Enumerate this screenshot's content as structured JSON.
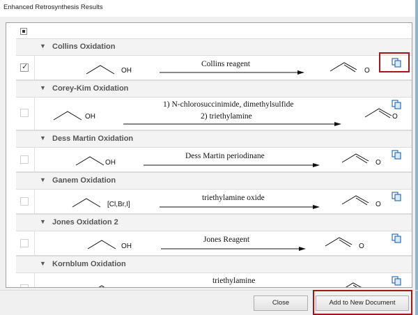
{
  "window": {
    "title": "Enhanced Retrosynthesis Results"
  },
  "reactions": [
    {
      "name": "Collins Oxidation",
      "checked": true,
      "reagent_lines": [
        "Collins reagent"
      ],
      "reactant_label": "OH",
      "product_label": "O",
      "highlighted_copy": true
    },
    {
      "name": "Corey-Kim Oxidation",
      "checked": false,
      "reagent_lines": [
        "1) N-chlorosuccinimide, dimethylsulfide",
        "2) triethylamine"
      ],
      "reactant_label": "OH",
      "product_label": "O"
    },
    {
      "name": "Dess Martin Oxidation",
      "checked": false,
      "reagent_lines": [
        "Dess Martin periodinane"
      ],
      "reactant_label": "OH",
      "product_label": "O"
    },
    {
      "name": "Ganem Oxidation",
      "checked": false,
      "reagent_lines": [
        "triethylamine oxide"
      ],
      "reactant_label": "[Cl,Br,I]",
      "product_label": "O"
    },
    {
      "name": "Jones Oxidation 2",
      "checked": false,
      "reagent_lines": [
        "Jones Reagent"
      ],
      "reactant_label": "OH",
      "product_label": "O"
    },
    {
      "name": "Kornblum Oxidation",
      "checked": false,
      "reagent_lines": [
        "triethylamine"
      ],
      "reactant_label": "",
      "product_label": ""
    }
  ],
  "buttons": {
    "close": "Close",
    "add": "Add to New Document"
  },
  "icons": {
    "copy": "copy-to-clipboard-icon",
    "caret": "collapse-caret-icon",
    "check": "checkmark-icon"
  },
  "colors": {
    "highlight": "#a01818",
    "copy_icon": "#2f6fb3"
  }
}
